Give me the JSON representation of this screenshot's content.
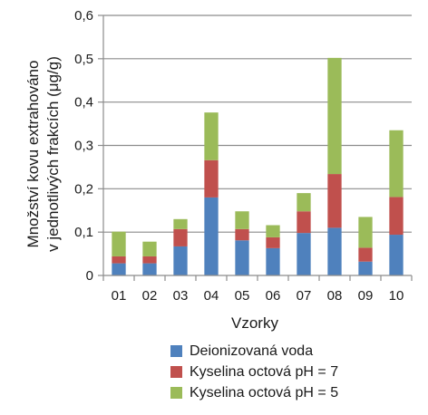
{
  "chart_data": {
    "type": "bar",
    "stacked": true,
    "categories": [
      "01",
      "02",
      "03",
      "04",
      "05",
      "06",
      "07",
      "08",
      "09",
      "10"
    ],
    "series": [
      {
        "name": "Deionizovaná voda",
        "color": "#4f81bd",
        "values": [
          0.028,
          0.028,
          0.067,
          0.18,
          0.081,
          0.063,
          0.098,
          0.11,
          0.032,
          0.094
        ]
      },
      {
        "name": "Kyselina octová pH = 7",
        "color": "#c0504d",
        "values": [
          0.016,
          0.016,
          0.04,
          0.086,
          0.026,
          0.025,
          0.05,
          0.124,
          0.032,
          0.087
        ]
      },
      {
        "name": "Kyselina octová pH = 5",
        "color": "#9bbb59",
        "values": [
          0.057,
          0.034,
          0.023,
          0.11,
          0.041,
          0.028,
          0.042,
          0.268,
          0.071,
          0.154
        ]
      }
    ],
    "xlabel": "Vzorky",
    "ylabel": [
      "Množství kovu extrahováno",
      "v jednotlivých frakcích (μg/g)"
    ],
    "ylim": [
      0,
      0.6
    ],
    "yticks": [
      "0",
      "0,1",
      "0,2",
      "0,3",
      "0,4",
      "0,5",
      "0,6"
    ],
    "grid": true,
    "legend_position": "bottom"
  }
}
